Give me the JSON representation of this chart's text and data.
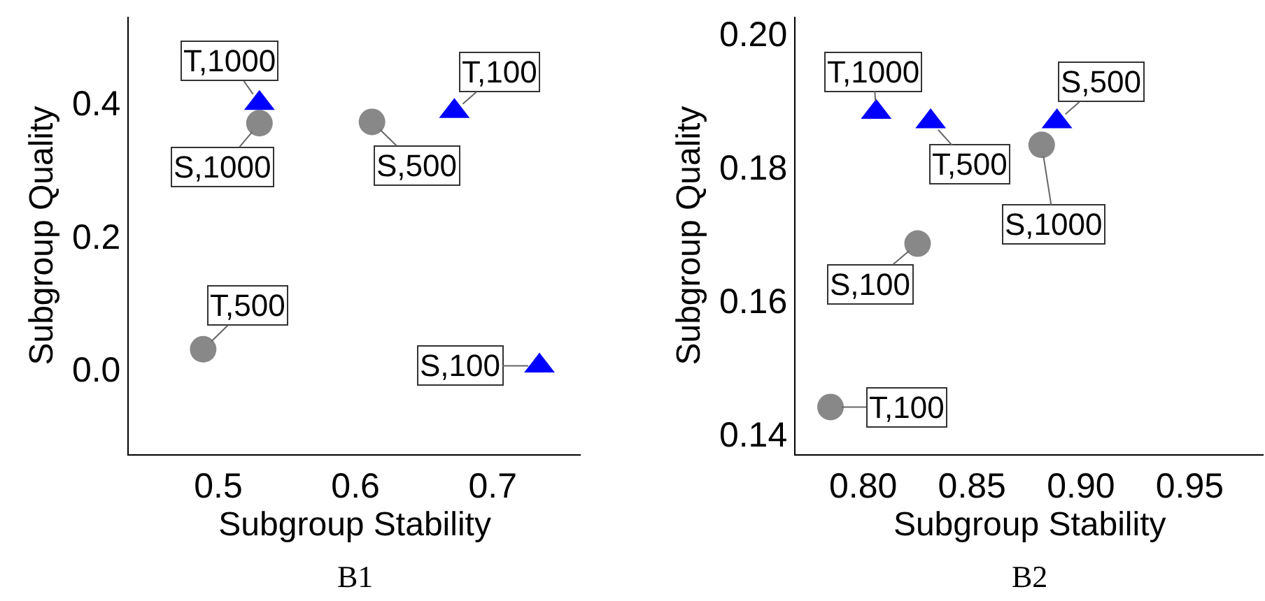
{
  "chart_data": [
    {
      "type": "scatter",
      "title": "B1",
      "xlabel": "Subgroup Stability",
      "ylabel": "Subgroup Quality",
      "grid": false,
      "xlim": [
        0.435,
        0.764
      ],
      "ylim": [
        -0.128,
        0.53
      ],
      "xticks": [
        {
          "value": 0.5,
          "label": "0.5"
        },
        {
          "value": 0.6,
          "label": "0.6"
        },
        {
          "value": 0.7,
          "label": "0.7"
        }
      ],
      "yticks": [
        {
          "value": 0.0,
          "label": "0.0"
        },
        {
          "value": 0.2,
          "label": "0.2"
        },
        {
          "value": 0.4,
          "label": "0.4"
        }
      ],
      "series": [
        {
          "color": "#888888",
          "marker": "circle",
          "x": [
            0.53,
            0.612,
            0.489
          ],
          "values": [
            0.37,
            0.372,
            0.03
          ]
        },
        {
          "color": "#0000ff",
          "marker": "triangle",
          "x": [
            0.53,
            0.672,
            0.734
          ],
          "values": [
            0.4,
            0.388,
            0.005
          ]
        }
      ],
      "annotations": [
        {
          "text": "T,1000",
          "x": 0.53,
          "y": 0.4
        },
        {
          "text": "S,1000",
          "x": 0.53,
          "y": 0.37
        },
        {
          "text": "S,500",
          "x": 0.612,
          "y": 0.372
        },
        {
          "text": "T,100",
          "x": 0.672,
          "y": 0.388
        },
        {
          "text": "T,500",
          "x": 0.489,
          "y": 0.03
        },
        {
          "text": "S,100",
          "x": 0.734,
          "y": 0.005
        }
      ]
    },
    {
      "type": "scatter",
      "title": "B2",
      "xlabel": "Subgroup Stability",
      "ylabel": "Subgroup Quality",
      "grid": false,
      "xlim": [
        0.769,
        0.984
      ],
      "ylim": [
        0.137,
        0.2026
      ],
      "xticks": [
        {
          "value": 0.8,
          "label": "0.80"
        },
        {
          "value": 0.85,
          "label": "0.85"
        },
        {
          "value": 0.9,
          "label": "0.90"
        },
        {
          "value": 0.95,
          "label": "0.95"
        }
      ],
      "yticks": [
        {
          "value": 0.14,
          "label": "0.14"
        },
        {
          "value": 0.16,
          "label": "0.16"
        },
        {
          "value": 0.18,
          "label": "0.18"
        },
        {
          "value": 0.2,
          "label": "0.20"
        }
      ],
      "series": [
        {
          "color": "#888888",
          "marker": "circle",
          "x": [
            0.882,
            0.825,
            0.785
          ],
          "values": [
            0.1834,
            0.1686,
            0.1441
          ]
        },
        {
          "color": "#0000ff",
          "marker": "triangle",
          "x": [
            0.806,
            0.831,
            0.889
          ],
          "values": [
            0.1883,
            0.1869,
            0.1869
          ]
        }
      ],
      "annotations": [
        {
          "text": "T,1000",
          "x": 0.806,
          "y": 0.1883
        },
        {
          "text": "T,500",
          "x": 0.831,
          "y": 0.1869
        },
        {
          "text": "S,500",
          "x": 0.889,
          "y": 0.1869
        },
        {
          "text": "S,1000",
          "x": 0.882,
          "y": 0.1834
        },
        {
          "text": "S,100",
          "x": 0.825,
          "y": 0.1686
        },
        {
          "text": "T,100",
          "x": 0.785,
          "y": 0.1441
        }
      ]
    }
  ]
}
